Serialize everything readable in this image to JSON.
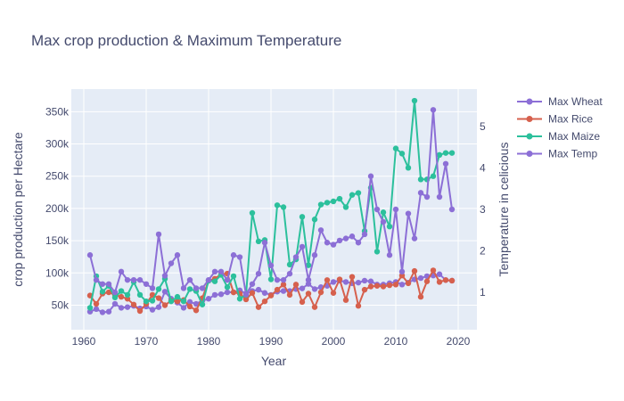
{
  "chart_data": {
    "type": "line",
    "title": "Max crop production & Maximum Temperature",
    "xlabel": "Year",
    "ylabel": "crop production per Hectare",
    "y2label": "Temperature in celicious",
    "xlim": [
      1958,
      2023
    ],
    "ylim": [
      12000,
      385000
    ],
    "y2lim": [
      0.1,
      5.9
    ],
    "xticks": [
      1960,
      1970,
      1980,
      1990,
      2000,
      2010,
      2020
    ],
    "xtick_labels": [
      "1960",
      "1970",
      "1980",
      "1990",
      "2000",
      "2010",
      "2020"
    ],
    "yticks": [
      50000,
      100000,
      150000,
      200000,
      250000,
      300000,
      350000
    ],
    "ytick_labels": [
      "50k",
      "100k",
      "150k",
      "200k",
      "250k",
      "300k",
      "350k"
    ],
    "y2ticks": [
      1,
      2,
      3,
      4,
      5
    ],
    "y2tick_labels": [
      "1",
      "2",
      "3",
      "4",
      "5"
    ],
    "legend_position": "top-right",
    "background": "#e5ecf6",
    "x": [
      1961,
      1962,
      1963,
      1964,
      1965,
      1966,
      1967,
      1968,
      1969,
      1970,
      1971,
      1972,
      1973,
      1974,
      1975,
      1976,
      1977,
      1978,
      1979,
      1980,
      1981,
      1982,
      1983,
      1984,
      1985,
      1986,
      1987,
      1988,
      1989,
      1990,
      1991,
      1992,
      1993,
      1994,
      1995,
      1996,
      1997,
      1998,
      1999,
      2000,
      2001,
      2002,
      2003,
      2004,
      2005,
      2006,
      2007,
      2008,
      2009,
      2010,
      2011,
      2012,
      2013,
      2014,
      2015,
      2016,
      2017,
      2018,
      2019
    ],
    "series": [
      {
        "name": "Max Wheat",
        "axis": "y",
        "color": "#8c6fd6",
        "values": [
          40000,
          44000,
          39000,
          40000,
          52000,
          46000,
          47000,
          49000,
          45000,
          48000,
          43000,
          47000,
          71000,
          60000,
          54000,
          46000,
          55000,
          52000,
          57000,
          60000,
          66000,
          67000,
          70000,
          70000,
          73000,
          68000,
          72000,
          74000,
          69000,
          66000,
          71000,
          72000,
          72000,
          75000,
          76000,
          83000,
          75000,
          78000,
          80000,
          86000,
          88000,
          86000,
          84000,
          85000,
          88000,
          87000,
          82000,
          82000,
          84000,
          86000,
          82000,
          85000,
          90000,
          92000,
          95000,
          96000,
          98000,
          89000,
          88000
        ]
      },
      {
        "name": "Max Rice",
        "axis": "y",
        "color": "#d6604d",
        "values": [
          65000,
          52000,
          68000,
          70000,
          66000,
          63000,
          60000,
          51000,
          41000,
          52000,
          66000,
          61000,
          50000,
          57000,
          56000,
          58000,
          48000,
          42000,
          61000,
          88000,
          91000,
          98000,
          99000,
          70000,
          68000,
          59000,
          69000,
          47000,
          56000,
          65000,
          74000,
          82000,
          66000,
          82000,
          55000,
          68000,
          47000,
          70000,
          89000,
          69000,
          90000,
          58000,
          94000,
          49000,
          74000,
          79000,
          80000,
          79000,
          81000,
          82000,
          96000,
          84000,
          103000,
          63000,
          87000,
          104000,
          86000,
          89000,
          88000
        ]
      },
      {
        "name": "Max Maize",
        "axis": "y",
        "color": "#2cc09c",
        "values": [
          46000,
          95000,
          71000,
          80000,
          62000,
          72000,
          66000,
          86000,
          66000,
          56000,
          57000,
          75000,
          91000,
          56000,
          63000,
          56000,
          75000,
          72000,
          51000,
          88000,
          87000,
          97000,
          78000,
          95000,
          60000,
          66000,
          193000,
          149000,
          151000,
          90000,
          205000,
          202000,
          113000,
          121000,
          187000,
          112000,
          183000,
          206000,
          209000,
          211000,
          215000,
          202000,
          221000,
          224000,
          165000,
          232000,
          133000,
          194000,
          172000,
          293000,
          285000,
          263000,
          367000,
          245000,
          245000,
          250000,
          283000,
          286000,
          286000
        ]
      },
      {
        "name": "Max Temp",
        "axis": "y2",
        "color": "#8c6fd6",
        "values": [
          1.9,
          1.3,
          1.2,
          1.2,
          1.0,
          1.5,
          1.3,
          1.3,
          1.3,
          1.2,
          1.1,
          2.4,
          1.4,
          1.7,
          1.9,
          1.1,
          1.3,
          1.1,
          1.1,
          1.3,
          1.5,
          1.5,
          1.3,
          1.9,
          1.85,
          0.95,
          1.2,
          1.45,
          2.2,
          1.65,
          1.3,
          1.3,
          1.45,
          1.85,
          2.1,
          1.3,
          1.9,
          2.5,
          2.2,
          2.15,
          2.25,
          2.3,
          2.35,
          2.2,
          2.4,
          3.8,
          3.0,
          2.7,
          1.9,
          3.0,
          1.5,
          2.9,
          2.3,
          3.4,
          3.3,
          5.4,
          3.3,
          4.1,
          3.0
        ]
      }
    ]
  }
}
